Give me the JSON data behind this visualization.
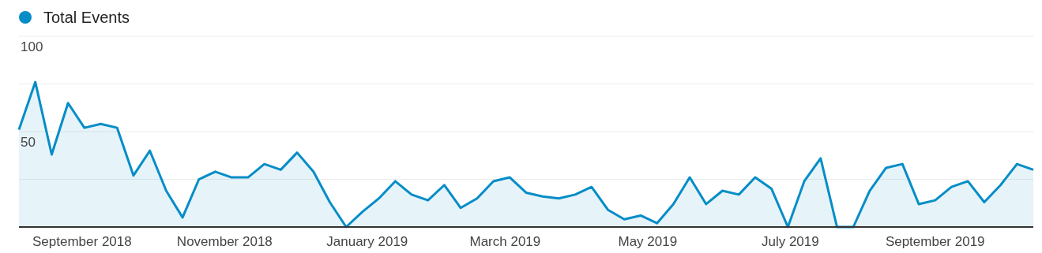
{
  "chart_data": {
    "type": "area",
    "legend": "top left",
    "grid": "y",
    "marker": "none",
    "line_style": "solid",
    "x": [
      "2018-08-05",
      "2018-08-12",
      "2018-08-19",
      "2018-08-26",
      "2018-09-02",
      "2018-09-09",
      "2018-09-16",
      "2018-09-23",
      "2018-09-30",
      "2018-10-07",
      "2018-10-14",
      "2018-10-21",
      "2018-10-28",
      "2018-11-04",
      "2018-11-11",
      "2018-11-18",
      "2018-11-25",
      "2018-12-02",
      "2018-12-09",
      "2018-12-16",
      "2018-12-23",
      "2018-12-30",
      "2019-01-06",
      "2019-01-13",
      "2019-01-20",
      "2019-01-27",
      "2019-02-03",
      "2019-02-10",
      "2019-02-17",
      "2019-02-24",
      "2019-03-03",
      "2019-03-10",
      "2019-03-17",
      "2019-03-24",
      "2019-03-31",
      "2019-04-07",
      "2019-04-14",
      "2019-04-21",
      "2019-04-28",
      "2019-05-05",
      "2019-05-12",
      "2019-05-19",
      "2019-05-26",
      "2019-06-02",
      "2019-06-09",
      "2019-06-16",
      "2019-06-23",
      "2019-06-30",
      "2019-07-07",
      "2019-07-14",
      "2019-07-21",
      "2019-07-28",
      "2019-08-04",
      "2019-08-11",
      "2019-08-18",
      "2019-08-25",
      "2019-09-01",
      "2019-09-08",
      "2019-09-15",
      "2019-09-22",
      "2019-09-29",
      "2019-10-06",
      "2019-10-13"
    ],
    "series": [
      {
        "name": "Total Events",
        "color": "#058dc7",
        "values": [
          51,
          76,
          38,
          65,
          52,
          54,
          52,
          27,
          40,
          19,
          5,
          25,
          29,
          26,
          26,
          33,
          30,
          39,
          29,
          13,
          0,
          8,
          15,
          24,
          17,
          14,
          22,
          10,
          15,
          24,
          26,
          18,
          16,
          15,
          17,
          21,
          9,
          4,
          6,
          2,
          12,
          26,
          12,
          19,
          17,
          26,
          20,
          0,
          24,
          36,
          0,
          0,
          19,
          31,
          33,
          12,
          14,
          21,
          24,
          13,
          22,
          33,
          30
        ]
      }
    ],
    "xlim": [
      "2018-08-05",
      "2019-10-13"
    ],
    "xticks": [
      {
        "value": "2018-09-01",
        "label": "September 2018"
      },
      {
        "value": "2018-11-01",
        "label": "November 2018"
      },
      {
        "value": "2019-01-01",
        "label": "January 2019"
      },
      {
        "value": "2019-03-01",
        "label": "March 2019"
      },
      {
        "value": "2019-05-01",
        "label": "May 2019"
      },
      {
        "value": "2019-07-01",
        "label": "July 2019"
      },
      {
        "value": "2019-09-01",
        "label": "September 2019"
      }
    ],
    "ylim": [
      0,
      100
    ],
    "yticks": [
      {
        "value": 0,
        "label": null
      },
      {
        "value": 25,
        "label": null
      },
      50,
      {
        "value": 75,
        "label": null
      },
      100
    ]
  }
}
